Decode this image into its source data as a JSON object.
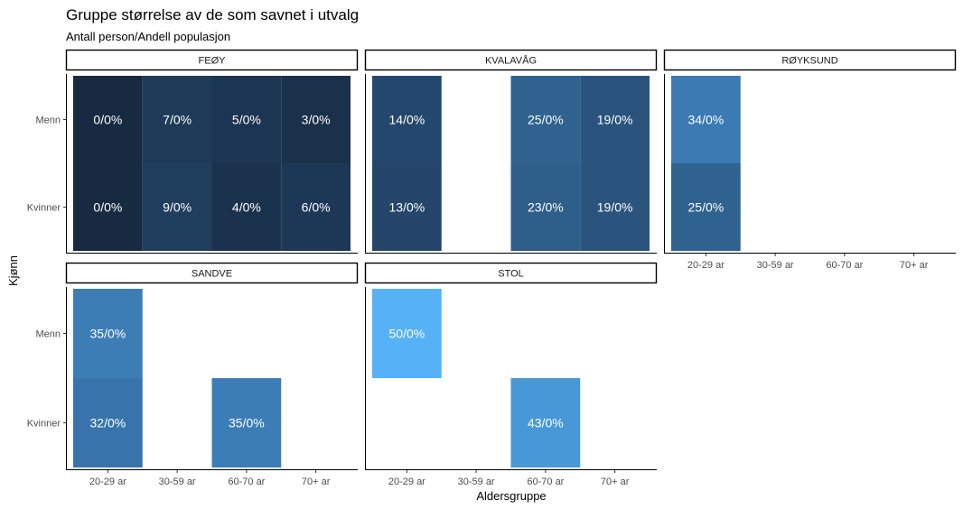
{
  "chart_data": {
    "type": "heatmap",
    "title": "Gruppe størrelse av de som savnet i utvalg",
    "subtitle": "Antall person/Andell populasjon",
    "xlabel": "Aldersgruppe",
    "ylabel": "Kjønn",
    "x_categories": [
      "20-29 ar",
      "30-59 ar",
      "60-70 ar",
      "70+ ar"
    ],
    "y_categories": [
      "Menn",
      "Kvinner"
    ],
    "legend": "none",
    "facets": [
      {
        "name": "FEØY",
        "cells": [
          {
            "x": "20-29 ar",
            "y": "Menn",
            "value": 0,
            "label": "0/0%",
            "color": "#172a42"
          },
          {
            "x": "30-59 ar",
            "y": "Menn",
            "value": 7,
            "label": "7/0%",
            "color": "#1e3b5a"
          },
          {
            "x": "60-70 ar",
            "y": "Menn",
            "value": 5,
            "label": "5/0%",
            "color": "#1c3552"
          },
          {
            "x": "70+ ar",
            "y": "Menn",
            "value": 3,
            "label": "3/0%",
            "color": "#1a314b"
          },
          {
            "x": "20-29 ar",
            "y": "Kvinner",
            "value": 0,
            "label": "0/0%",
            "color": "#172a42"
          },
          {
            "x": "30-59 ar",
            "y": "Kvinner",
            "value": 9,
            "label": "9/0%",
            "color": "#1f3e5e"
          },
          {
            "x": "60-70 ar",
            "y": "Kvinner",
            "value": 4,
            "label": "4/0%",
            "color": "#1b324e"
          },
          {
            "x": "70+ ar",
            "y": "Kvinner",
            "value": 6,
            "label": "6/0%",
            "color": "#1d3856"
          }
        ]
      },
      {
        "name": "KVALAVÅG",
        "cells": [
          {
            "x": "20-29 ar",
            "y": "Menn",
            "value": 14,
            "label": "14/0%",
            "color": "#24486d"
          },
          {
            "x": "60-70 ar",
            "y": "Menn",
            "value": 25,
            "label": "25/0%",
            "color": "#30628f"
          },
          {
            "x": "70+ ar",
            "y": "Menn",
            "value": 19,
            "label": "19/0%",
            "color": "#2a547d"
          },
          {
            "x": "20-29 ar",
            "y": "Kvinner",
            "value": 13,
            "label": "13/0%",
            "color": "#23466a"
          },
          {
            "x": "60-70 ar",
            "y": "Kvinner",
            "value": 23,
            "label": "23/0%",
            "color": "#2e5e8a"
          },
          {
            "x": "70+ ar",
            "y": "Kvinner",
            "value": 19,
            "label": "19/0%",
            "color": "#2a547d"
          }
        ]
      },
      {
        "name": "RØYKSUND",
        "cells": [
          {
            "x": "20-29 ar",
            "y": "Menn",
            "value": 34,
            "label": "34/0%",
            "color": "#3b7ab3"
          },
          {
            "x": "20-29 ar",
            "y": "Kvinner",
            "value": 25,
            "label": "25/0%",
            "color": "#30628f"
          }
        ]
      },
      {
        "name": "SANDVE",
        "cells": [
          {
            "x": "20-29 ar",
            "y": "Menn",
            "value": 35,
            "label": "35/0%",
            "color": "#3d7db6"
          },
          {
            "x": "20-29 ar",
            "y": "Kvinner",
            "value": 32,
            "label": "32/0%",
            "color": "#3874ab"
          },
          {
            "x": "60-70 ar",
            "y": "Kvinner",
            "value": 35,
            "label": "35/0%",
            "color": "#3d7db6"
          }
        ]
      },
      {
        "name": "STOL",
        "cells": [
          {
            "x": "20-29 ar",
            "y": "Menn",
            "value": 50,
            "label": "50/0%",
            "color": "#56b1f7"
          },
          {
            "x": "60-70 ar",
            "y": "Kvinner",
            "value": 43,
            "label": "43/0%",
            "color": "#4898d8"
          }
        ]
      }
    ]
  }
}
